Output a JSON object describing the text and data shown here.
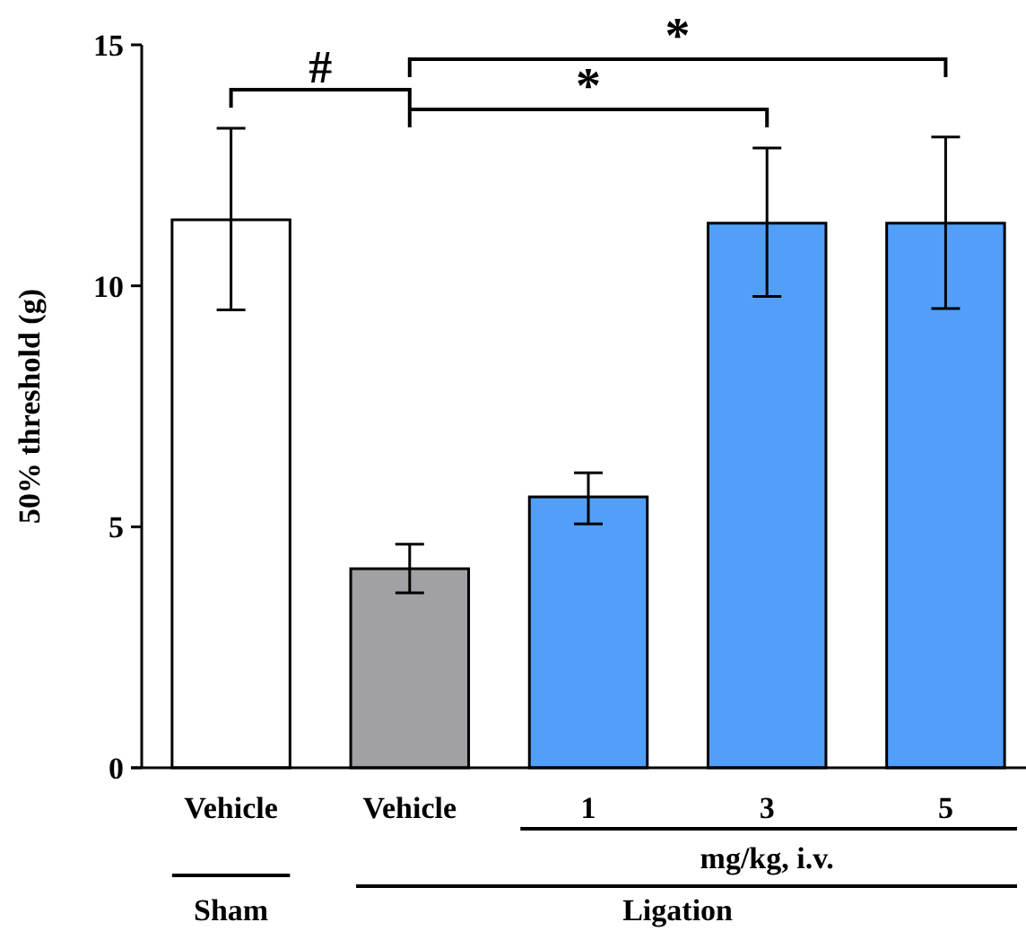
{
  "chart_data": {
    "type": "bar",
    "ylabel": "50% threshold (g)",
    "categories": [
      "Vehicle",
      "Vehicle",
      "1",
      "3",
      "5"
    ],
    "values": [
      11.37,
      4.13,
      5.62,
      11.3,
      11.3
    ],
    "colors": [
      "#ffffff",
      "#a1a1a5",
      "#529ffa",
      "#529ffa",
      "#529ffa"
    ],
    "errors": [
      [
        9.5,
        13.27
      ],
      [
        3.63,
        4.64
      ],
      [
        5.06,
        6.12
      ],
      [
        9.78,
        12.86
      ],
      [
        9.53,
        13.09
      ]
    ],
    "ylim": [
      0,
      15
    ],
    "yticks": [
      0,
      5,
      10,
      15
    ],
    "grid": false,
    "annotations": [
      "#",
      "*",
      "*",
      "mg/kg, i.v.",
      "Sham",
      "Ligation"
    ]
  }
}
